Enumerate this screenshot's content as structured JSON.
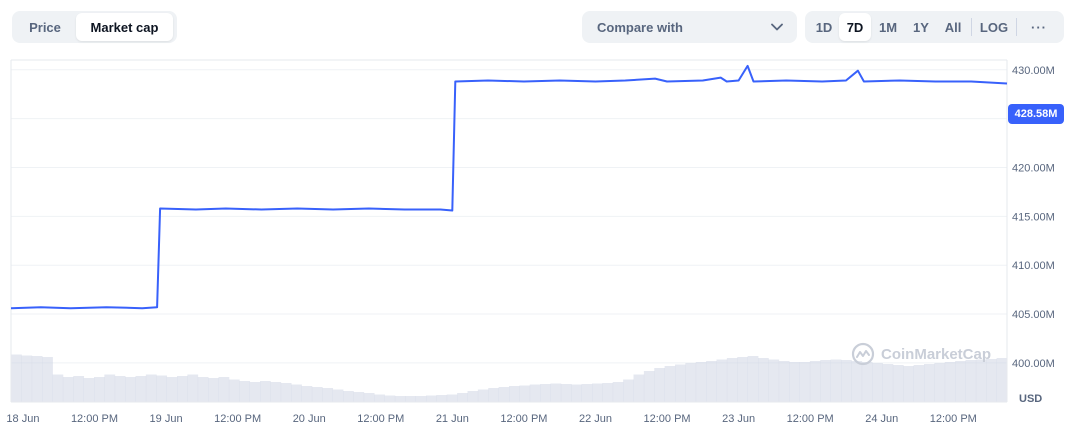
{
  "tabs": [
    {
      "label": "Price",
      "active": false
    },
    {
      "label": "Market cap",
      "active": true
    }
  ],
  "compare": {
    "label": "Compare with",
    "icon": "chevron-down-icon"
  },
  "ranges": [
    {
      "label": "1D",
      "active": false
    },
    {
      "label": "7D",
      "active": true
    },
    {
      "label": "1M",
      "active": false
    },
    {
      "label": "1Y",
      "active": false
    },
    {
      "label": "All",
      "active": false
    }
  ],
  "log_label": "LOG",
  "more_label": "···",
  "watermark": "CoinMarketCap",
  "currency": "USD",
  "current_value_label": "428.58M",
  "colors": {
    "line": "#3861fb",
    "volume": "#cfd6e4",
    "grid": "#eff2f5"
  },
  "chart_data": {
    "type": "line",
    "y_unit": "M USD",
    "ylim": [
      396,
      431
    ],
    "yticks": [
      {
        "value": 400,
        "label": "400.00M"
      },
      {
        "value": 405,
        "label": "405.00M"
      },
      {
        "value": 410,
        "label": "410.00M"
      },
      {
        "value": 415,
        "label": "415.00M"
      },
      {
        "value": 420,
        "label": "420.00M"
      },
      {
        "value": 425,
        "label": "425.00M"
      },
      {
        "value": 430,
        "label": "430.00M"
      }
    ],
    "xticks": [
      {
        "x": "2024-06-18 00:00",
        "label": "18 Jun"
      },
      {
        "x": "2024-06-18 12:00",
        "label": "12:00 PM"
      },
      {
        "x": "2024-06-19 00:00",
        "label": "19 Jun"
      },
      {
        "x": "2024-06-19 12:00",
        "label": "12:00 PM"
      },
      {
        "x": "2024-06-20 00:00",
        "label": "20 Jun"
      },
      {
        "x": "2024-06-20 12:00",
        "label": "12:00 PM"
      },
      {
        "x": "2024-06-21 00:00",
        "label": "21 Jun"
      },
      {
        "x": "2024-06-21 12:00",
        "label": "12:00 PM"
      },
      {
        "x": "2024-06-22 00:00",
        "label": "22 Jun"
      },
      {
        "x": "2024-06-22 12:00",
        "label": "12:00 PM"
      },
      {
        "x": "2024-06-23 00:00",
        "label": "23 Jun"
      },
      {
        "x": "2024-06-23 12:00",
        "label": "12:00 PM"
      },
      {
        "x": "2024-06-24 00:00",
        "label": "24 Jun"
      },
      {
        "x": "2024-06-24 12:00",
        "label": "12:00 PM"
      }
    ],
    "series": [
      {
        "values": [
          [
            "2024-06-17 22:00",
            405.6
          ],
          [
            "2024-06-18 03:00",
            405.7
          ],
          [
            "2024-06-18 08:00",
            405.6
          ],
          [
            "2024-06-18 14:00",
            405.7
          ],
          [
            "2024-06-18 20:00",
            405.6
          ],
          [
            "2024-06-18 22:30",
            405.7
          ],
          [
            "2024-06-18 23:00",
            415.8
          ],
          [
            "2024-06-19 05:00",
            415.7
          ],
          [
            "2024-06-19 10:00",
            415.8
          ],
          [
            "2024-06-19 16:00",
            415.7
          ],
          [
            "2024-06-19 22:00",
            415.8
          ],
          [
            "2024-06-20 04:00",
            415.7
          ],
          [
            "2024-06-20 10:00",
            415.8
          ],
          [
            "2024-06-20 16:00",
            415.7
          ],
          [
            "2024-06-20 22:00",
            415.7
          ],
          [
            "2024-06-21 00:00",
            415.6
          ],
          [
            "2024-06-21 00:30",
            428.8
          ],
          [
            "2024-06-21 06:00",
            428.9
          ],
          [
            "2024-06-21 12:00",
            428.8
          ],
          [
            "2024-06-21 18:00",
            428.9
          ],
          [
            "2024-06-22 00:00",
            428.8
          ],
          [
            "2024-06-22 05:00",
            428.9
          ],
          [
            "2024-06-22 10:00",
            429.1
          ],
          [
            "2024-06-22 12:00",
            428.8
          ],
          [
            "2024-06-22 18:00",
            428.9
          ],
          [
            "2024-06-22 21:00",
            429.2
          ],
          [
            "2024-06-22 22:00",
            428.8
          ],
          [
            "2024-06-23 00:00",
            428.9
          ],
          [
            "2024-06-23 01:30",
            430.4
          ],
          [
            "2024-06-23 02:30",
            428.8
          ],
          [
            "2024-06-23 08:00",
            428.9
          ],
          [
            "2024-06-23 14:00",
            428.8
          ],
          [
            "2024-06-23 18:00",
            428.9
          ],
          [
            "2024-06-23 20:00",
            429.9
          ],
          [
            "2024-06-23 21:00",
            428.8
          ],
          [
            "2024-06-24 03:00",
            428.9
          ],
          [
            "2024-06-24 09:00",
            428.8
          ],
          [
            "2024-06-24 15:00",
            428.8
          ],
          [
            "2024-06-24 21:00",
            428.6
          ]
        ]
      }
    ],
    "volume_relative": [
      0.95,
      0.93,
      0.92,
      0.9,
      0.55,
      0.5,
      0.52,
      0.48,
      0.5,
      0.55,
      0.52,
      0.5,
      0.52,
      0.55,
      0.53,
      0.5,
      0.52,
      0.55,
      0.5,
      0.48,
      0.5,
      0.45,
      0.42,
      0.4,
      0.42,
      0.4,
      0.38,
      0.35,
      0.32,
      0.3,
      0.28,
      0.25,
      0.22,
      0.2,
      0.18,
      0.15,
      0.13,
      0.12,
      0.12,
      0.12,
      0.13,
      0.14,
      0.15,
      0.18,
      0.22,
      0.25,
      0.28,
      0.3,
      0.32,
      0.33,
      0.35,
      0.36,
      0.37,
      0.36,
      0.35,
      0.36,
      0.37,
      0.38,
      0.4,
      0.45,
      0.55,
      0.62,
      0.68,
      0.72,
      0.75,
      0.78,
      0.8,
      0.82,
      0.85,
      0.88,
      0.9,
      0.92,
      0.88,
      0.85,
      0.82,
      0.8,
      0.8,
      0.82,
      0.84,
      0.85,
      0.84,
      0.82,
      0.8,
      0.78,
      0.76,
      0.74,
      0.72,
      0.74,
      0.76,
      0.78,
      0.8,
      0.82,
      0.84,
      0.85,
      0.86,
      0.88
    ]
  }
}
